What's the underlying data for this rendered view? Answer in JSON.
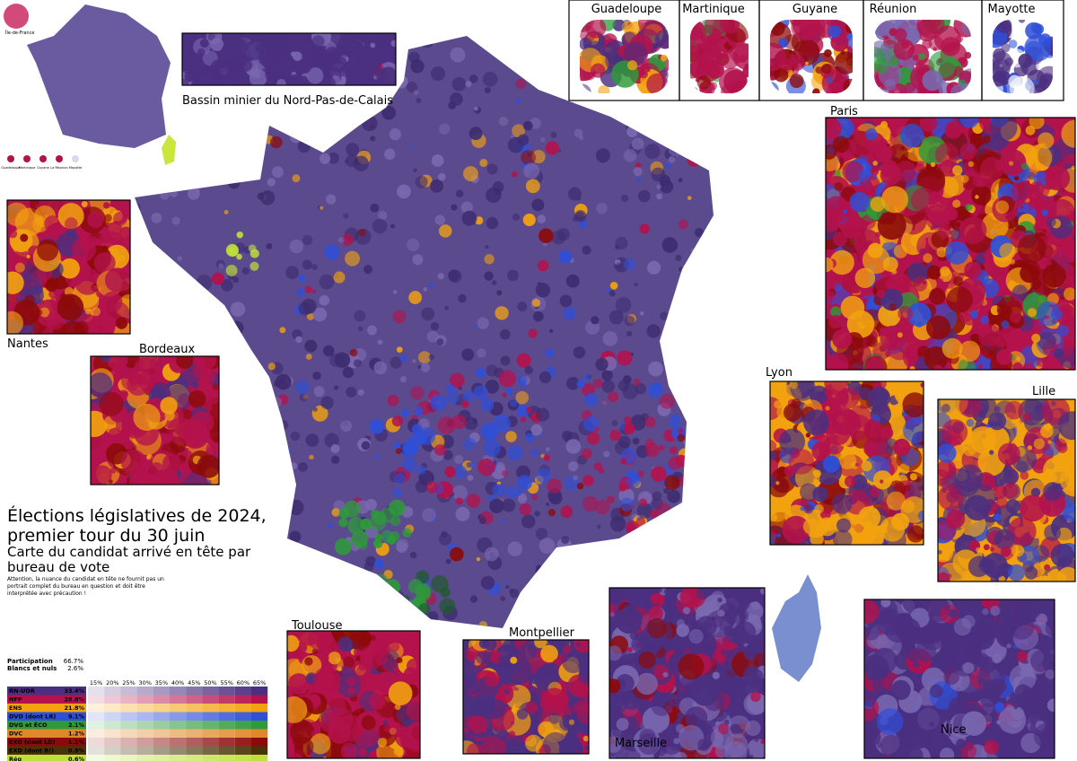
{
  "title": [
    "Élections législatives de 2024,",
    "premier tour du 30 juin"
  ],
  "subtitle": [
    "Carte du candidat arrivé en tête par",
    "bureau de vote"
  ],
  "note": [
    "Attention, la nuance du candidat en tête ne fournit pas un",
    "portrait complet du bureau en question et doit être",
    "interprétée avec précaution !"
  ],
  "overview": {
    "label": "Île-de-France",
    "dom_labels": [
      "Guadeloupe",
      "Martinique",
      "Guyane",
      "La Réunion",
      "Mayotte"
    ]
  },
  "insets": [
    {
      "label": "Bassin minier du Nord-Pas-de-Calais"
    },
    {
      "label": "Guadeloupe"
    },
    {
      "label": "Martinique"
    },
    {
      "label": "Guyane"
    },
    {
      "label": "Réunion"
    },
    {
      "label": "Mayotte"
    },
    {
      "label": "Paris"
    },
    {
      "label": "Nantes"
    },
    {
      "label": "Bordeaux"
    },
    {
      "label": "Lyon"
    },
    {
      "label": "Lille"
    },
    {
      "label": "Toulouse"
    },
    {
      "label": "Montpellier"
    },
    {
      "label": "Marseille"
    },
    {
      "label": "Nice"
    }
  ],
  "legend": {
    "participation": {
      "label": "Participation",
      "value": "66.7%"
    },
    "blank": {
      "label": "Blancs et nuls",
      "value": "2.6%"
    },
    "scale": [
      "15%",
      "20%",
      "25%",
      "30%",
      "35%",
      "40%",
      "45%",
      "50%",
      "55%",
      "60%",
      "65%"
    ],
    "parties": [
      {
        "name": "RN-UDR",
        "share": "33.4%",
        "color": "#4b2f80"
      },
      {
        "name": "NFP",
        "share": "28.8%",
        "color": "#b3124c"
      },
      {
        "name": "ENS",
        "share": "21.8%",
        "color": "#f2a20f"
      },
      {
        "name": "DVD (dont LR)",
        "share": "9.1%",
        "color": "#2f4fd8"
      },
      {
        "name": "DVG et ÉCO",
        "share": "2.1%",
        "color": "#2e9a3a"
      },
      {
        "name": "DVC",
        "share": "1.2%",
        "color": "#e0892a"
      },
      {
        "name": "EXG (dont LO)",
        "share": "1.1%",
        "color": "#8c0a0a"
      },
      {
        "name": "EXD (dont R!)",
        "share": "0.9%",
        "color": "#4a3308"
      },
      {
        "name": "Rég",
        "share": "0.6%",
        "color": "#bfe03a"
      }
    ]
  }
}
